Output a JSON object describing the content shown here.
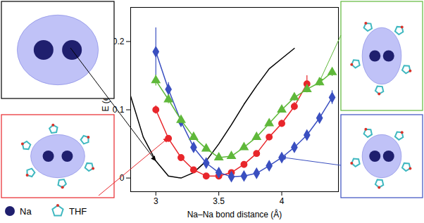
{
  "chart_data": {
    "type": "line",
    "x_label": "Na–Na bond distance (Å)",
    "y_label": "E (eV)",
    "x": [
      2.8,
      2.9,
      3.0,
      3.1,
      3.2,
      3.3,
      3.4,
      3.5,
      3.6,
      3.7,
      3.8,
      3.9,
      4.0,
      4.1,
      4.2,
      4.3,
      4.4
    ],
    "xlim": [
      2.8,
      4.45
    ],
    "xticks": [
      3,
      3.5,
      4
    ],
    "ylim": [
      -0.02,
      0.25
    ],
    "yticks": [
      0,
      0.1,
      0.2
    ],
    "grid": false,
    "annotations": [
      "Na",
      "THF"
    ],
    "series": [
      {
        "color": "#000000",
        "marker": "none",
        "line_style": "solid",
        "values": [
          0.12,
          0.06,
          0.025,
          0.003,
          0.0,
          0.008,
          0.025,
          0.05,
          0.078,
          0.108,
          0.135,
          0.16,
          0.175,
          0.19,
          null,
          null,
          null
        ],
        "errors": [
          null,
          null,
          null,
          null,
          null,
          null,
          null,
          null,
          null,
          null,
          null,
          null,
          null,
          null,
          null,
          null,
          null
        ]
      },
      {
        "color": "#e8262b",
        "marker": "circle",
        "line_style": "solid",
        "values": [
          null,
          null,
          0.1,
          0.058,
          0.03,
          0.012,
          0.003,
          0.003,
          0.008,
          0.02,
          0.036,
          0.06,
          0.08,
          0.105,
          0.138,
          null,
          null
        ],
        "errors": [
          null,
          null,
          0.006,
          0.004,
          0.003,
          0.002,
          0.002,
          0.002,
          0.002,
          0.003,
          0.003,
          0.004,
          0.005,
          0.006,
          0.012,
          null,
          null
        ]
      },
      {
        "color": "#3a4fc0",
        "marker": "diamond",
        "line_style": "solid",
        "values": [
          null,
          null,
          0.185,
          0.13,
          0.083,
          0.045,
          0.022,
          0.008,
          0.002,
          0.003,
          0.007,
          0.018,
          0.03,
          0.045,
          0.063,
          0.088,
          0.118
        ],
        "errors": [
          null,
          null,
          0.035,
          0.01,
          0.005,
          0.003,
          0.002,
          0.002,
          0.002,
          0.002,
          0.002,
          0.002,
          0.003,
          0.003,
          0.004,
          0.005,
          0.01
        ]
      },
      {
        "color": "#5fb83a",
        "marker": "triangle",
        "line_style": "solid",
        "values": [
          null,
          null,
          0.143,
          0.115,
          0.085,
          0.06,
          0.043,
          0.03,
          0.032,
          0.045,
          0.06,
          0.08,
          0.1,
          0.118,
          0.13,
          0.14,
          0.155
        ],
        "errors": [
          null,
          null,
          0.008,
          0.006,
          0.004,
          0.003,
          0.003,
          0.003,
          0.003,
          0.003,
          0.003,
          0.004,
          0.004,
          0.005,
          0.005,
          0.005,
          0.006
        ]
      }
    ]
  }
}
